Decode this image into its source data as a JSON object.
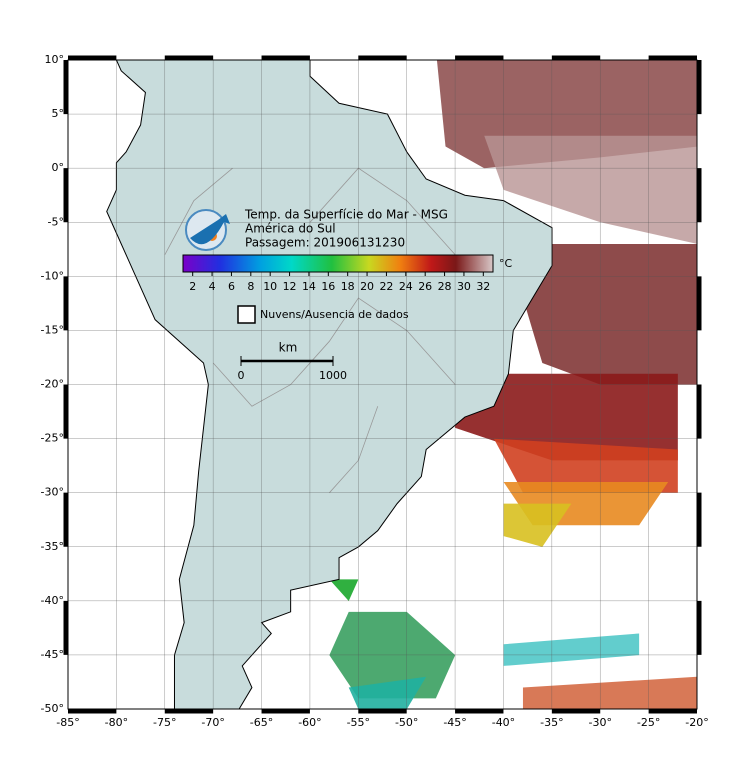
{
  "header": {
    "title": "Temp. da Superfície do Mar - MSG",
    "region": "América do Sul",
    "pass": "Passagem: 201906131230"
  },
  "colorbar": {
    "ticks": [
      2,
      4,
      6,
      8,
      10,
      12,
      14,
      16,
      18,
      20,
      22,
      24,
      26,
      28,
      30,
      32
    ],
    "range": [
      1,
      33
    ],
    "unit": "°C"
  },
  "legend": {
    "no_data": "Nuvens/Ausencia de dados"
  },
  "scale_bar": {
    "unit": "km",
    "ticks": [
      0,
      1000
    ]
  },
  "map": {
    "xlim": [
      -85,
      -20
    ],
    "ylim": [
      -50,
      10
    ],
    "xticks": [
      {
        "value": -85,
        "label": "-85°"
      },
      {
        "value": -80,
        "label": "-80°"
      },
      {
        "value": -75,
        "label": "-75°"
      },
      {
        "value": -70,
        "label": "-70°"
      },
      {
        "value": -65,
        "label": "-65°"
      },
      {
        "value": -60,
        "label": "-60°"
      },
      {
        "value": -55,
        "label": "-55°"
      },
      {
        "value": -50,
        "label": "-50°"
      },
      {
        "value": -45,
        "label": "-45°"
      },
      {
        "value": -40,
        "label": "-40°"
      },
      {
        "value": -35,
        "label": "-35°"
      },
      {
        "value": -30,
        "label": "-30°"
      },
      {
        "value": -25,
        "label": "-25°"
      },
      {
        "value": -20,
        "label": "-20°"
      }
    ],
    "yticks": [
      {
        "value": 10,
        "label": "10°"
      },
      {
        "value": 5,
        "label": "5°"
      },
      {
        "value": 0,
        "label": "0°"
      },
      {
        "value": -5,
        "label": "-5°"
      },
      {
        "value": -10,
        "label": "-10°"
      },
      {
        "value": -15,
        "label": "-15°"
      },
      {
        "value": -20,
        "label": "-20°"
      },
      {
        "value": -25,
        "label": "-25°"
      },
      {
        "value": -30,
        "label": "-30°"
      },
      {
        "value": -35,
        "label": "-35°"
      },
      {
        "value": -40,
        "label": "-40°"
      },
      {
        "value": -45,
        "label": "-45°"
      },
      {
        "value": -50,
        "label": "-50°"
      }
    ]
  }
}
